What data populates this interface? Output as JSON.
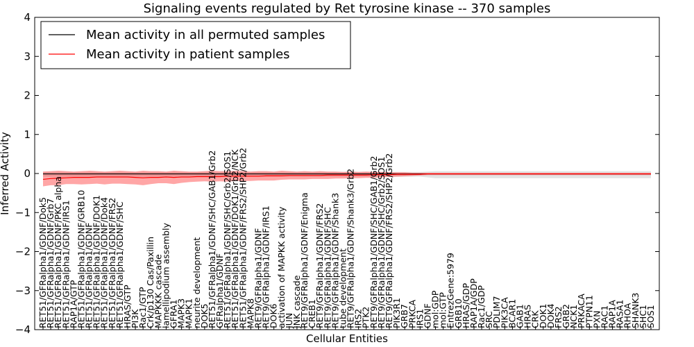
{
  "chart_data": {
    "type": "line",
    "title": "Signaling events regulated by Ret tyrosine kinase -- 370 samples",
    "xlabel": "Cellular Entities",
    "ylabel": "Inferred Activity",
    "ylim": [
      -4,
      4
    ],
    "yticks": [
      "−4",
      "−3",
      "−2",
      "−1",
      "0",
      "1",
      "2",
      "3",
      "4"
    ],
    "grid": false,
    "legend_position": "top-left",
    "categories": [
      "RET51/GFRalpha1/GDNF/Dok5",
      "RET51/GFRalpha1/GDNF/Grb7",
      "RET51/GFRalpha1/GDNF/PKC alpha",
      "RET51/GFRalpha1/GDNF/IRS1",
      "RAP1A/GTP",
      "RET51/GFRalpha1/GDNF/GRB10",
      "RET51/GFRalpha1/GDNF",
      "RET51/GFRalpha1/GDNF/DOK1",
      "RET51/GFRalpha1/GDNF/Dok4",
      "RET51/GFRalpha1/GDNF/FRS2",
      "RET51/GFRalpha1/GDNF/SHC",
      "HRAS/GTP",
      "PI3K",
      "Rac1/GTP",
      "Crk/p130 Cas/Paxillin",
      "MAPKKK cascade",
      "lamellipodium assembly",
      "GFRA1",
      "MAPK3",
      "MAPK1",
      "neurite development",
      "DOK5",
      "RET51/GFRalpha1/GDNF/SHC/GAB1/Grb2",
      "GFRalpha1/GDNF",
      "RET51/GFRalpha1/GDNF/SHC/Grb2/SOS1",
      "RET51/GFRalpha1/GDNF/DOK1/Grb2/NCK",
      "RET51/GFRalpha1/GDNF/FRS2/SHP2/Grb2",
      "MAPK8",
      "RET9/GFRalpha1/GDNF",
      "RET9/GFRalpha1/GDNF/IRS1",
      "DOK6",
      "activation of MAPKK activity",
      "JUN",
      "JNK cascade",
      "RET9/GFRalpha1/GDNF/Enigma",
      "CREB1",
      "RET9/GFRalpha1/GDNF/FRS2",
      "RET9/GFRalpha1/GDNF/SHC",
      "RET9/GFRalpha1/GDNF/Shank3",
      "tube development",
      "RET9/GFRalpha1/GDNF/Shank3/Grb2",
      "IRS2",
      "PTK2",
      "RET9/GFRalpha1/GDNF/SHC/GAB1/Grb2",
      "RET9/GFRalpha1/GDNF/SHC/Grb2/SOS1",
      "RET9/GFRalpha1/GDNF/FRS2/SHP2/Grb2",
      "PIK3R1",
      "GRB7",
      "PRKCA",
      "IRS1",
      "GDNF",
      "mol:GDP",
      "mol:GTP",
      "EntrezGene:5979",
      "GRB10",
      "HRAS/GDP",
      "RAP1A/GDP",
      "Rac1/GDP",
      "SRC",
      "PDLIM7",
      "PIK3CA",
      "BCAR1",
      "GAB1",
      "HRAS",
      "CRK",
      "DOK1",
      "DOK4",
      "FRS2",
      "GRB2",
      "NCK1",
      "PRKACA",
      "PTPN11",
      "PXN",
      "RAC1",
      "RAP1A",
      "RASA1",
      "RHOA",
      "SHANK3",
      "SHC1",
      "SOS1"
    ],
    "series": [
      {
        "name": "Mean activity in all permuted samples",
        "color": "#000000",
        "values": [
          -0.01,
          -0.01,
          -0.01,
          -0.01,
          -0.01,
          -0.01,
          -0.01,
          -0.01,
          -0.01,
          -0.01,
          -0.01,
          -0.01,
          -0.01,
          -0.01,
          -0.01,
          -0.01,
          -0.01,
          -0.01,
          -0.01,
          -0.01,
          -0.01,
          -0.01,
          -0.01,
          -0.01,
          -0.01,
          -0.01,
          -0.01,
          -0.01,
          -0.01,
          -0.01,
          -0.01,
          -0.01,
          -0.01,
          -0.01,
          -0.01,
          -0.01,
          -0.01,
          -0.01,
          -0.01,
          -0.01,
          -0.01,
          -0.01,
          -0.01,
          -0.01,
          -0.01,
          -0.01,
          -0.01,
          -0.01,
          -0.01,
          -0.01,
          -0.01,
          -0.01,
          -0.01,
          -0.01,
          -0.01,
          -0.01,
          -0.01,
          -0.01,
          -0.01,
          -0.01,
          -0.01,
          -0.01,
          -0.01,
          -0.01,
          -0.01,
          -0.01,
          -0.01,
          -0.01,
          -0.01,
          -0.01,
          -0.01,
          -0.01,
          -0.01,
          -0.01,
          -0.01,
          -0.01,
          -0.01,
          -0.01,
          -0.01,
          -0.01
        ],
        "band_low": [
          -0.08,
          -0.08,
          -0.08,
          -0.08,
          -0.08,
          -0.08,
          -0.08,
          -0.08,
          -0.08,
          -0.08,
          -0.08,
          -0.08,
          -0.08,
          -0.08,
          -0.08,
          -0.08,
          -0.08,
          -0.08,
          -0.08,
          -0.08,
          -0.08,
          -0.08,
          -0.08,
          -0.08,
          -0.08,
          -0.08,
          -0.08,
          -0.08,
          -0.08,
          -0.08,
          -0.08,
          -0.08,
          -0.08,
          -0.08,
          -0.08,
          -0.08,
          -0.08,
          -0.08,
          -0.08,
          -0.08,
          -0.08,
          -0.08,
          -0.08,
          -0.08,
          -0.08,
          -0.08,
          -0.08,
          -0.08,
          -0.08,
          -0.08,
          -0.1,
          -0.12,
          -0.12,
          -0.12,
          -0.12,
          -0.12,
          -0.12,
          -0.12,
          -0.12,
          -0.12,
          -0.12,
          -0.12,
          -0.12,
          -0.12,
          -0.12,
          -0.12,
          -0.12,
          -0.12,
          -0.12,
          -0.12,
          -0.12,
          -0.12,
          -0.12,
          -0.12,
          -0.12,
          -0.12,
          -0.12,
          -0.12,
          -0.12,
          -0.12
        ],
        "band_high": [
          0.04,
          0.04,
          0.04,
          0.04,
          0.04,
          0.04,
          0.04,
          0.04,
          0.04,
          0.04,
          0.04,
          0.04,
          0.04,
          0.04,
          0.04,
          0.04,
          0.04,
          0.04,
          0.04,
          0.04,
          0.04,
          0.04,
          0.04,
          0.04,
          0.04,
          0.04,
          0.04,
          0.04,
          0.04,
          0.04,
          0.04,
          0.04,
          0.04,
          0.04,
          0.04,
          0.04,
          0.04,
          0.04,
          0.04,
          0.04,
          0.04,
          0.04,
          0.04,
          0.04,
          0.04,
          0.04,
          0.04,
          0.04,
          0.04,
          0.04,
          0.05,
          0.06,
          0.06,
          0.06,
          0.06,
          0.06,
          0.06,
          0.06,
          0.06,
          0.06,
          0.06,
          0.06,
          0.06,
          0.06,
          0.06,
          0.06,
          0.06,
          0.06,
          0.06,
          0.06,
          0.06,
          0.06,
          0.06,
          0.06,
          0.06,
          0.06,
          0.06,
          0.06,
          0.06,
          0.06
        ]
      },
      {
        "name": "Mean activity in patient samples",
        "color": "#ff0000",
        "values": [
          -0.15,
          -0.13,
          -0.12,
          -0.11,
          -0.1,
          -0.1,
          -0.1,
          -0.09,
          -0.09,
          -0.09,
          -0.09,
          -0.09,
          -0.1,
          -0.11,
          -0.1,
          -0.1,
          -0.09,
          -0.1,
          -0.09,
          -0.09,
          -0.08,
          -0.08,
          -0.08,
          -0.08,
          -0.07,
          -0.07,
          -0.07,
          -0.07,
          -0.07,
          -0.06,
          -0.06,
          -0.06,
          -0.05,
          -0.05,
          -0.05,
          -0.05,
          -0.05,
          -0.04,
          -0.04,
          -0.04,
          -0.04,
          -0.04,
          -0.04,
          -0.03,
          -0.03,
          -0.03,
          -0.02,
          -0.02,
          -0.02,
          -0.02,
          -0.01,
          -0.01,
          -0.01,
          -0.01,
          -0.01,
          -0.01,
          -0.01,
          -0.01,
          -0.01,
          -0.01,
          -0.01,
          -0.01,
          -0.01,
          -0.01,
          -0.01,
          -0.01,
          -0.01,
          -0.01,
          -0.01,
          -0.01,
          -0.01,
          -0.01,
          -0.01,
          -0.01,
          -0.01,
          -0.01,
          -0.01,
          -0.01,
          -0.01,
          -0.01
        ],
        "band_low": [
          -0.33,
          -0.3,
          -0.3,
          -0.27,
          -0.27,
          -0.28,
          -0.27,
          -0.26,
          -0.28,
          -0.26,
          -0.26,
          -0.27,
          -0.28,
          -0.3,
          -0.27,
          -0.25,
          -0.25,
          -0.27,
          -0.24,
          -0.22,
          -0.21,
          -0.2,
          -0.21,
          -0.2,
          -0.21,
          -0.19,
          -0.19,
          -0.19,
          -0.18,
          -0.18,
          -0.18,
          -0.16,
          -0.15,
          -0.15,
          -0.15,
          -0.14,
          -0.14,
          -0.14,
          -0.13,
          -0.13,
          -0.12,
          -0.12,
          -0.11,
          -0.11,
          -0.1,
          -0.09,
          -0.08,
          -0.07,
          -0.06,
          -0.05,
          -0.04,
          -0.04,
          -0.04,
          -0.04,
          -0.04,
          -0.04,
          -0.04,
          -0.04,
          -0.04,
          -0.04,
          -0.04,
          -0.04,
          -0.04,
          -0.04,
          -0.04,
          -0.04,
          -0.04,
          -0.04,
          -0.04,
          -0.04,
          -0.04,
          -0.04,
          -0.04,
          -0.04,
          -0.04,
          -0.04,
          -0.04,
          -0.04,
          -0.04,
          -0.04
        ],
        "band_high": [
          0.05,
          0.06,
          0.07,
          0.06,
          0.05,
          0.06,
          0.07,
          0.06,
          0.05,
          0.06,
          0.07,
          0.06,
          0.05,
          0.07,
          0.06,
          0.06,
          0.05,
          0.07,
          0.06,
          0.05,
          0.05,
          0.06,
          0.07,
          0.06,
          0.06,
          0.07,
          0.06,
          0.05,
          0.06,
          0.06,
          0.05,
          0.07,
          0.06,
          0.05,
          0.06,
          0.05,
          0.06,
          0.05,
          0.05,
          0.04,
          0.05,
          0.04,
          0.05,
          0.04,
          0.04,
          0.03,
          0.03,
          0.03,
          0.02,
          0.02,
          0.02,
          0.02,
          0.02,
          0.02,
          0.02,
          0.02,
          0.02,
          0.02,
          0.02,
          0.02,
          0.02,
          0.02,
          0.02,
          0.02,
          0.02,
          0.02,
          0.02,
          0.02,
          0.02,
          0.02,
          0.02,
          0.02,
          0.02,
          0.02,
          0.02,
          0.02,
          0.02,
          0.02,
          0.02,
          0.02
        ]
      }
    ]
  }
}
